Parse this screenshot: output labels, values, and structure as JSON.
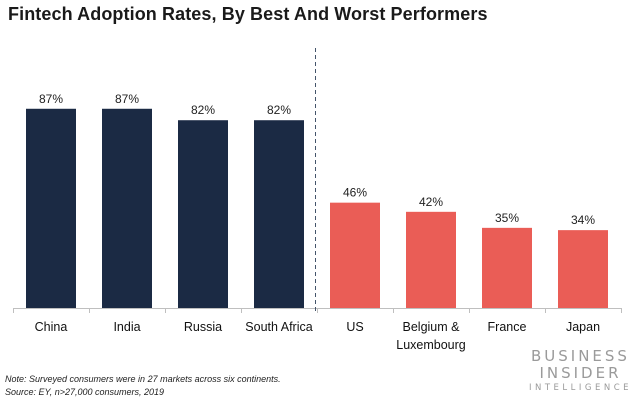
{
  "chart_data": {
    "type": "bar",
    "title": "Fintech Adoption Rates, By Best And Worst Performers",
    "categories": [
      "China",
      "India",
      "Russia",
      "South Africa",
      "US",
      "Belgium & Luxembourg",
      "France",
      "Japan"
    ],
    "category_lines": [
      [
        "China"
      ],
      [
        "India"
      ],
      [
        "Russia"
      ],
      [
        "South Africa"
      ],
      [
        "US"
      ],
      [
        "Belgium &",
        "Luxembourg"
      ],
      [
        "France"
      ],
      [
        "Japan"
      ]
    ],
    "values": [
      87,
      87,
      82,
      82,
      46,
      42,
      35,
      34
    ],
    "data_labels": [
      "87%",
      "87%",
      "82%",
      "82%",
      "46%",
      "42%",
      "35%",
      "34%"
    ],
    "groups": [
      "best",
      "best",
      "best",
      "best",
      "worst",
      "worst",
      "worst",
      "worst"
    ],
    "colors": {
      "best": "#1b2a44",
      "worst": "#ea5d56"
    },
    "ylim": [
      0,
      100
    ],
    "grid": false,
    "divider": "dashed line between South Africa and US",
    "xlabel": "",
    "ylabel": ""
  },
  "footer": {
    "note": "Note: Surveyed consumers were in 27 markets across six continents.",
    "source": "Source: EY, n>27,000 consumers, 2019"
  },
  "logo": {
    "line1": "BUSINESS",
    "line2": "INSIDER",
    "line3": "INTELLIGENCE"
  }
}
